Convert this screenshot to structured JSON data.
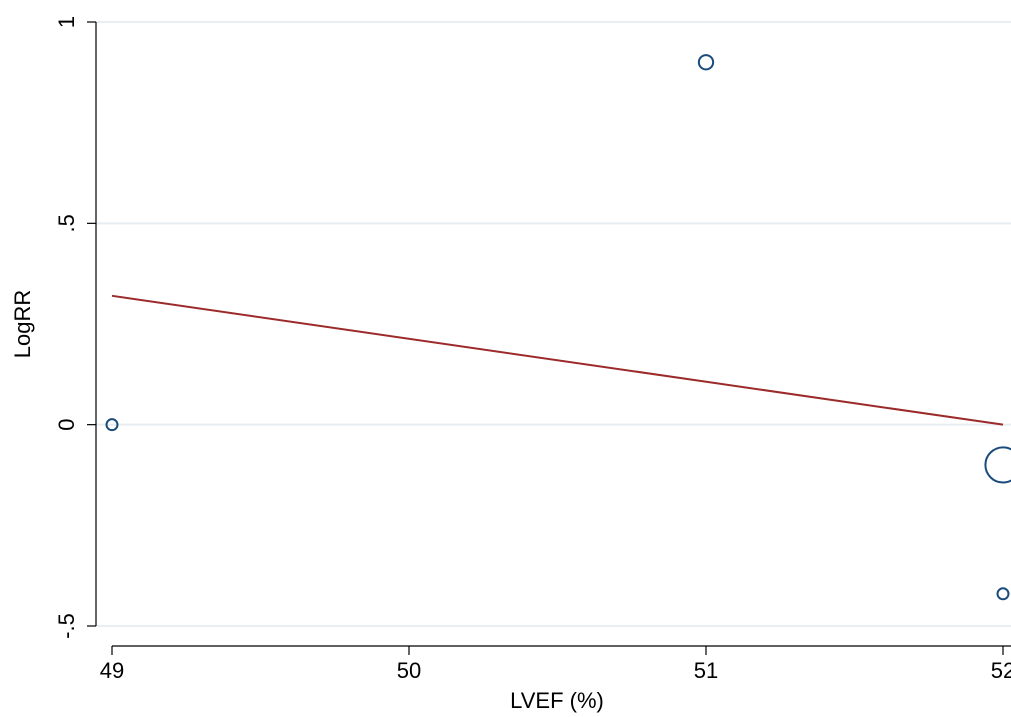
{
  "chart_data": {
    "type": "scatter",
    "title": "",
    "xlabel": "LVEF (%)",
    "ylabel": "LogRR",
    "xlim": [
      49,
      52
    ],
    "ylim": [
      -0.5,
      1
    ],
    "x_ticks": [
      49,
      50,
      51,
      52
    ],
    "x_tick_labels": [
      "49",
      "50",
      "51",
      "52"
    ],
    "y_ticks": [
      -0.5,
      0,
      0.5,
      1
    ],
    "y_tick_labels": [
      "-.5",
      "0",
      ".5",
      "1"
    ],
    "grid": "horizontal",
    "legend": "none",
    "colors": {
      "marker": "#1a4b7d",
      "fit_line": "#9c2a2a",
      "grid": "#e8eef2",
      "axis": "#000000"
    },
    "points": [
      {
        "x": 49,
        "y": 0.0,
        "weight": 1
      },
      {
        "x": 51,
        "y": 0.9,
        "weight": 1.3
      },
      {
        "x": 52,
        "y": -0.1,
        "weight": 3.2
      },
      {
        "x": 52,
        "y": -0.42,
        "weight": 1
      }
    ],
    "fit_line": {
      "x": [
        49,
        52
      ],
      "y": [
        0.32,
        0.0
      ]
    }
  }
}
